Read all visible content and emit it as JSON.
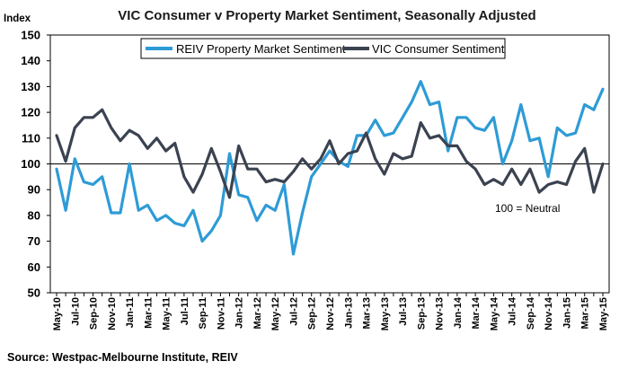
{
  "chart_data": {
    "type": "line",
    "title": "VIC Consumer v Property Market Sentiment, Seasonally Adjusted",
    "ylabel": "Index",
    "xlabel": "",
    "ylim": [
      50,
      150
    ],
    "yticks": [
      50,
      60,
      70,
      80,
      90,
      100,
      110,
      120,
      130,
      140,
      150
    ],
    "reference_line": 100,
    "annotation": "100 = Neutral",
    "source": "Source:  Westpac-Melbourne Institute, REIV",
    "grid": false,
    "legend_position": "top",
    "x": [
      "May-10",
      "Jun-10",
      "Jul-10",
      "Aug-10",
      "Sep-10",
      "Oct-10",
      "Nov-10",
      "Dec-10",
      "Jan-11",
      "Feb-11",
      "Mar-11",
      "Apr-11",
      "May-11",
      "Jun-11",
      "Jul-11",
      "Aug-11",
      "Sep-11",
      "Oct-11",
      "Nov-11",
      "Dec-11",
      "Jan-12",
      "Feb-12",
      "Mar-12",
      "Apr-12",
      "May-12",
      "Jun-12",
      "Jul-12",
      "Aug-12",
      "Sep-12",
      "Oct-12",
      "Nov-12",
      "Dec-12",
      "Jan-13",
      "Feb-13",
      "Mar-13",
      "Apr-13",
      "May-13",
      "Jun-13",
      "Jul-13",
      "Aug-13",
      "Sep-13",
      "Oct-13",
      "Nov-13",
      "Dec-13",
      "Jan-14",
      "Feb-14",
      "Mar-14",
      "Apr-14",
      "May-14",
      "Jun-14",
      "Jul-14",
      "Aug-14",
      "Sep-14",
      "Oct-14",
      "Nov-14",
      "Dec-14",
      "Jan-15",
      "Feb-15",
      "Mar-15",
      "Apr-15",
      "May-15"
    ],
    "xticklabels": [
      "May-10",
      "Jul-10",
      "Sep-10",
      "Nov-10",
      "Jan-11",
      "Mar-11",
      "May-11",
      "Jul-11",
      "Sep-11",
      "Nov-11",
      "Jan-12",
      "Mar-12",
      "May-12",
      "Jul-12",
      "Sep-12",
      "Nov-12",
      "Jan-13",
      "Mar-13",
      "May-13",
      "Jul-13",
      "Sep-13",
      "Nov-13",
      "Jan-14",
      "Mar-14",
      "May-14",
      "Jul-14",
      "Sep-14",
      "Nov-14",
      "Jan-15",
      "Mar-15",
      "May-15"
    ],
    "series": [
      {
        "name": "REIV Property Market Sentiment",
        "color": "#2E9BD6",
        "values": [
          98,
          82,
          102,
          93,
          92,
          95,
          81,
          81,
          100,
          82,
          84,
          78,
          80,
          77,
          76,
          82,
          70,
          74,
          80,
          104,
          88,
          87,
          78,
          84,
          82,
          92,
          65,
          81,
          95,
          100,
          105,
          101,
          99,
          111,
          111,
          117,
          111,
          112,
          118,
          124,
          132,
          123,
          124,
          105,
          118,
          118,
          114,
          113,
          118,
          100,
          109,
          123,
          109,
          110,
          95,
          114,
          111,
          112,
          123,
          121,
          129
        ]
      },
      {
        "name": "VIC Consumer Sentiment",
        "color": "#3B4250",
        "values": [
          111,
          101,
          114,
          118,
          118,
          121,
          114,
          109,
          113,
          111,
          106,
          110,
          105,
          108,
          95,
          89,
          96,
          106,
          97,
          87,
          107,
          98,
          98,
          93,
          94,
          93,
          97,
          102,
          98,
          102,
          109,
          100,
          104,
          105,
          112,
          102,
          96,
          104,
          102,
          103,
          116,
          110,
          111,
          107,
          107,
          101,
          98,
          92,
          94,
          92,
          98,
          92,
          98,
          89,
          92,
          93,
          92,
          101,
          106,
          89,
          100
        ]
      }
    ]
  }
}
